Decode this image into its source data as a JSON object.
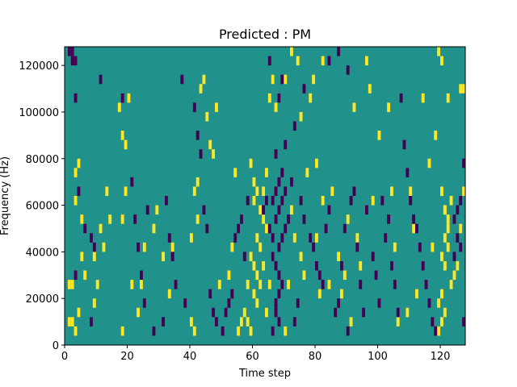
{
  "chart_data": {
    "type": "heatmap",
    "title": "Predicted : PM",
    "xlabel": "Time step",
    "ylabel": "Frequency (Hz)",
    "xlim": [
      0,
      128
    ],
    "ylim": [
      0,
      128000
    ],
    "x_ticks": [
      0,
      20,
      40,
      60,
      80,
      100,
      120
    ],
    "y_ticks": [
      0,
      20000,
      40000,
      60000,
      80000,
      100000,
      120000
    ],
    "grid": false,
    "colors": {
      "background": "#21918c",
      "high": "#fde725",
      "low": "#440154"
    },
    "cell": {
      "width_steps": 1,
      "height_hz": 4000
    },
    "high_cells": [
      [
        1,
        8000
      ],
      [
        2,
        8000
      ],
      [
        1,
        24000
      ],
      [
        2,
        24000
      ],
      [
        3,
        4000
      ],
      [
        4,
        12000
      ],
      [
        5,
        36000
      ],
      [
        6,
        28000
      ],
      [
        5,
        52000
      ],
      [
        3,
        60000
      ],
      [
        3,
        72000
      ],
      [
        4,
        76000
      ],
      [
        9,
        16000
      ],
      [
        10,
        24000
      ],
      [
        11,
        48000
      ],
      [
        12,
        40000
      ],
      [
        9,
        36000
      ],
      [
        13,
        64000
      ],
      [
        14,
        52000
      ],
      [
        18,
        4000
      ],
      [
        18,
        52000
      ],
      [
        19,
        64000
      ],
      [
        19,
        84000
      ],
      [
        18,
        88000
      ],
      [
        17,
        100000
      ],
      [
        20,
        104000
      ],
      [
        21,
        24000
      ],
      [
        23,
        12000
      ],
      [
        24,
        24000
      ],
      [
        25,
        40000
      ],
      [
        28,
        48000
      ],
      [
        29,
        56000
      ],
      [
        31,
        36000
      ],
      [
        33,
        20000
      ],
      [
        34,
        40000
      ],
      [
        40,
        8000
      ],
      [
        41,
        4000
      ],
      [
        40,
        44000
      ],
      [
        42,
        52000
      ],
      [
        41,
        64000
      ],
      [
        42,
        68000
      ],
      [
        43,
        108000
      ],
      [
        44,
        112000
      ],
      [
        45,
        96000
      ],
      [
        46,
        84000
      ],
      [
        47,
        80000
      ],
      [
        48,
        100000
      ],
      [
        49,
        24000
      ],
      [
        52,
        28000
      ],
      [
        53,
        40000
      ],
      [
        54,
        72000
      ],
      [
        55,
        4000
      ],
      [
        56,
        8000
      ],
      [
        57,
        12000
      ],
      [
        58,
        24000
      ],
      [
        59,
        36000
      ],
      [
        60,
        20000
      ],
      [
        61,
        44000
      ],
      [
        62,
        56000
      ],
      [
        63,
        64000
      ],
      [
        64,
        72000
      ],
      [
        58,
        8000
      ],
      [
        59,
        4000
      ],
      [
        60,
        60000
      ],
      [
        61,
        16000
      ],
      [
        62,
        24000
      ],
      [
        63,
        32000
      ],
      [
        64,
        48000
      ],
      [
        64,
        12000
      ],
      [
        61,
        64000
      ],
      [
        60,
        68000
      ],
      [
        59,
        76000
      ],
      [
        65,
        104000
      ],
      [
        66,
        112000
      ],
      [
        67,
        100000
      ],
      [
        65,
        24000
      ],
      [
        66,
        36000
      ],
      [
        63,
        52000
      ],
      [
        62,
        40000
      ],
      [
        61,
        28000
      ],
      [
        60,
        32000
      ],
      [
        70,
        4000
      ],
      [
        71,
        24000
      ],
      [
        72,
        56000
      ],
      [
        73,
        44000
      ],
      [
        75,
        36000
      ],
      [
        76,
        28000
      ],
      [
        78,
        104000
      ],
      [
        79,
        112000
      ],
      [
        80,
        44000
      ],
      [
        81,
        20000
      ],
      [
        82,
        60000
      ],
      [
        84,
        24000
      ],
      [
        85,
        64000
      ],
      [
        87,
        36000
      ],
      [
        88,
        20000
      ],
      [
        89,
        28000
      ],
      [
        90,
        52000
      ],
      [
        91,
        8000
      ],
      [
        92,
        100000
      ],
      [
        93,
        44000
      ],
      [
        94,
        32000
      ],
      [
        96,
        120000
      ],
      [
        97,
        108000
      ],
      [
        98,
        60000
      ],
      [
        100,
        88000
      ],
      [
        103,
        100000
      ],
      [
        104,
        64000
      ],
      [
        105,
        40000
      ],
      [
        106,
        8000
      ],
      [
        109,
        12000
      ],
      [
        110,
        64000
      ],
      [
        111,
        48000
      ],
      [
        112,
        20000
      ],
      [
        114,
        104000
      ],
      [
        116,
        76000
      ],
      [
        117,
        40000
      ],
      [
        118,
        88000
      ],
      [
        119,
        4000
      ],
      [
        120,
        20000
      ],
      [
        121,
        32000
      ],
      [
        122,
        48000
      ],
      [
        123,
        60000
      ],
      [
        120,
        36000
      ],
      [
        121,
        44000
      ],
      [
        122,
        52000
      ],
      [
        120,
        64000
      ],
      [
        121,
        56000
      ],
      [
        122,
        40000
      ],
      [
        123,
        24000
      ],
      [
        119,
        16000
      ],
      [
        121,
        12000
      ],
      [
        120,
        8000
      ],
      [
        124,
        28000
      ],
      [
        125,
        32000
      ],
      [
        126,
        48000
      ],
      [
        127,
        64000
      ],
      [
        126,
        108000
      ],
      [
        127,
        108000
      ],
      [
        122,
        104000
      ],
      [
        119,
        124000
      ],
      [
        120,
        120000
      ],
      [
        121,
        56000
      ],
      [
        68,
        104000
      ],
      [
        70,
        112000
      ],
      [
        72,
        124000
      ],
      [
        74,
        120000
      ],
      [
        75,
        96000
      ],
      [
        77,
        72000
      ],
      [
        80,
        76000
      ],
      [
        82,
        120000
      ]
    ],
    "low_cells": [
      [
        2,
        120000
      ],
      [
        3,
        120000
      ],
      [
        1,
        124000
      ],
      [
        2,
        124000
      ],
      [
        3,
        104000
      ],
      [
        4,
        64000
      ],
      [
        3,
        28000
      ],
      [
        6,
        48000
      ],
      [
        8,
        44000
      ],
      [
        9,
        40000
      ],
      [
        8,
        8000
      ],
      [
        11,
        112000
      ],
      [
        18,
        104000
      ],
      [
        21,
        68000
      ],
      [
        22,
        52000
      ],
      [
        23,
        40000
      ],
      [
        24,
        28000
      ],
      [
        25,
        16000
      ],
      [
        26,
        56000
      ],
      [
        28,
        4000
      ],
      [
        31,
        8000
      ],
      [
        32,
        60000
      ],
      [
        33,
        44000
      ],
      [
        34,
        36000
      ],
      [
        35,
        24000
      ],
      [
        37,
        112000
      ],
      [
        38,
        16000
      ],
      [
        41,
        100000
      ],
      [
        42,
        88000
      ],
      [
        43,
        80000
      ],
      [
        44,
        56000
      ],
      [
        45,
        48000
      ],
      [
        46,
        20000
      ],
      [
        47,
        12000
      ],
      [
        48,
        8000
      ],
      [
        50,
        4000
      ],
      [
        51,
        12000
      ],
      [
        52,
        16000
      ],
      [
        53,
        20000
      ],
      [
        54,
        44000
      ],
      [
        55,
        48000
      ],
      [
        56,
        52000
      ],
      [
        57,
        36000
      ],
      [
        58,
        60000
      ],
      [
        63,
        56000
      ],
      [
        64,
        60000
      ],
      [
        65,
        48000
      ],
      [
        66,
        44000
      ],
      [
        67,
        52000
      ],
      [
        68,
        56000
      ],
      [
        69,
        60000
      ],
      [
        70,
        64000
      ],
      [
        68,
        8000
      ],
      [
        67,
        12000
      ],
      [
        66,
        4000
      ],
      [
        67,
        16000
      ],
      [
        68,
        20000
      ],
      [
        69,
        24000
      ],
      [
        68,
        28000
      ],
      [
        67,
        32000
      ],
      [
        66,
        36000
      ],
      [
        68,
        40000
      ],
      [
        69,
        44000
      ],
      [
        70,
        48000
      ],
      [
        71,
        52000
      ],
      [
        72,
        68000
      ],
      [
        67,
        64000
      ],
      [
        66,
        60000
      ],
      [
        68,
        68000
      ],
      [
        69,
        72000
      ],
      [
        67,
        80000
      ],
      [
        68,
        104000
      ],
      [
        69,
        112000
      ],
      [
        65,
        120000
      ],
      [
        73,
        8000
      ],
      [
        74,
        16000
      ],
      [
        75,
        60000
      ],
      [
        76,
        52000
      ],
      [
        78,
        44000
      ],
      [
        79,
        40000
      ],
      [
        80,
        32000
      ],
      [
        81,
        28000
      ],
      [
        82,
        24000
      ],
      [
        83,
        48000
      ],
      [
        84,
        56000
      ],
      [
        86,
        12000
      ],
      [
        87,
        16000
      ],
      [
        88,
        32000
      ],
      [
        89,
        48000
      ],
      [
        90,
        4000
      ],
      [
        91,
        60000
      ],
      [
        92,
        64000
      ],
      [
        93,
        40000
      ],
      [
        94,
        24000
      ],
      [
        95,
        12000
      ],
      [
        96,
        56000
      ],
      [
        98,
        36000
      ],
      [
        99,
        28000
      ],
      [
        100,
        16000
      ],
      [
        101,
        60000
      ],
      [
        102,
        44000
      ],
      [
        103,
        52000
      ],
      [
        104,
        32000
      ],
      [
        105,
        24000
      ],
      [
        106,
        12000
      ],
      [
        107,
        104000
      ],
      [
        108,
        84000
      ],
      [
        109,
        72000
      ],
      [
        110,
        60000
      ],
      [
        111,
        52000
      ],
      [
        112,
        48000
      ],
      [
        113,
        40000
      ],
      [
        114,
        32000
      ],
      [
        115,
        24000
      ],
      [
        116,
        16000
      ],
      [
        117,
        8000
      ],
      [
        118,
        4000
      ],
      [
        124,
        52000
      ],
      [
        125,
        56000
      ],
      [
        126,
        60000
      ],
      [
        127,
        8000
      ],
      [
        127,
        76000
      ],
      [
        124,
        36000
      ],
      [
        125,
        44000
      ],
      [
        126,
        40000
      ],
      [
        70,
        84000
      ],
      [
        73,
        92000
      ],
      [
        76,
        108000
      ],
      [
        84,
        120000
      ],
      [
        87,
        124000
      ],
      [
        90,
        116000
      ]
    ]
  }
}
